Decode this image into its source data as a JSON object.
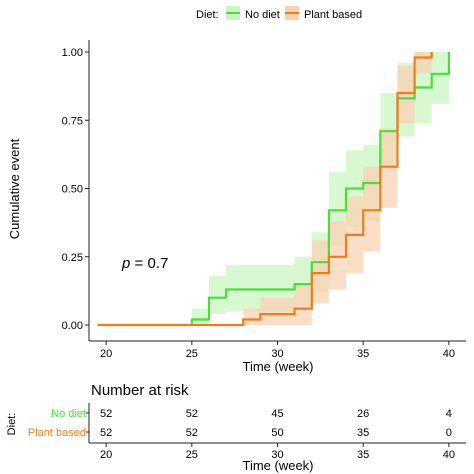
{
  "legend": {
    "title": "Diet:",
    "placement": "top",
    "items": [
      {
        "label": "No diet",
        "color": "#4ddc3c",
        "fill": "#c9f5c2"
      },
      {
        "label": "Plant based",
        "color": "#ee7d20",
        "fill": "#fbd2b1"
      }
    ]
  },
  "chart_data": {
    "type": "line",
    "subtype": "kaplan-meier-cumulative-event",
    "xlabel": "Time (week)",
    "ylabel": "Cumulative event",
    "xlim": [
      19,
      41
    ],
    "ylim": [
      0,
      1
    ],
    "x_ticks": [
      "20",
      "25",
      "30",
      "35",
      "40"
    ],
    "y_ticks": [
      "0.00",
      "0.25",
      "0.50",
      "0.75",
      "1.00"
    ],
    "annotation": {
      "italic": "p",
      "text": " = 0.7",
      "x": 21,
      "y": 0.25
    },
    "grid": false,
    "series": [
      {
        "name": "No diet",
        "color": "#4ddc3c",
        "steps": [
          [
            19.5,
            0
          ],
          [
            25,
            0
          ],
          [
            25,
            0.02
          ],
          [
            26,
            0.02
          ],
          [
            26,
            0.1
          ],
          [
            27,
            0.1
          ],
          [
            27,
            0.13
          ],
          [
            31,
            0.13
          ],
          [
            31,
            0.15
          ],
          [
            32,
            0.15
          ],
          [
            32,
            0.23
          ],
          [
            33,
            0.23
          ],
          [
            33,
            0.42
          ],
          [
            34,
            0.42
          ],
          [
            34,
            0.5
          ],
          [
            35,
            0.5
          ],
          [
            35,
            0.52
          ],
          [
            36,
            0.52
          ],
          [
            36,
            0.71
          ],
          [
            37,
            0.71
          ],
          [
            37,
            0.83
          ],
          [
            38,
            0.83
          ],
          [
            38,
            0.87
          ],
          [
            39,
            0.87
          ],
          [
            39,
            0.92
          ],
          [
            40,
            0.92
          ],
          [
            40,
            1.0
          ]
        ],
        "ci_lower": [
          0,
          0,
          0.0,
          0.0,
          0.04,
          0.04,
          0.05,
          0.05,
          0.07,
          0.07,
          0.12,
          0.12,
          0.29,
          0.29,
          0.36,
          0.36,
          0.38,
          0.38,
          0.56,
          0.56,
          0.69,
          0.69,
          0.74,
          0.74,
          0.81,
          0.81,
          0.9
        ],
        "ci_upper": [
          0,
          0,
          0.06,
          0.06,
          0.18,
          0.18,
          0.22,
          0.22,
          0.25,
          0.25,
          0.34,
          0.34,
          0.56,
          0.56,
          0.64,
          0.64,
          0.66,
          0.66,
          0.85,
          0.85,
          0.96,
          0.96,
          1.0,
          1.0,
          1.0,
          1.0,
          1.0
        ]
      },
      {
        "name": "Plant based",
        "color": "#ee7d20",
        "steps": [
          [
            19.5,
            0
          ],
          [
            28,
            0
          ],
          [
            28,
            0.02
          ],
          [
            29,
            0.02
          ],
          [
            29,
            0.04
          ],
          [
            31,
            0.04
          ],
          [
            31,
            0.06
          ],
          [
            32,
            0.06
          ],
          [
            32,
            0.19
          ],
          [
            33,
            0.19
          ],
          [
            33,
            0.25
          ],
          [
            34,
            0.25
          ],
          [
            34,
            0.33
          ],
          [
            35,
            0.33
          ],
          [
            35,
            0.42
          ],
          [
            36,
            0.42
          ],
          [
            36,
            0.58
          ],
          [
            37,
            0.58
          ],
          [
            37,
            0.85
          ],
          [
            38,
            0.85
          ],
          [
            38,
            0.98
          ],
          [
            39,
            0.98
          ],
          [
            39,
            1.0
          ]
        ],
        "ci_lower": [
          0,
          0,
          0.0,
          0.0,
          0.0,
          0.0,
          0.0,
          0.0,
          0.08,
          0.08,
          0.13,
          0.13,
          0.19,
          0.19,
          0.27,
          0.27,
          0.43,
          0.43,
          0.74,
          0.74,
          0.92,
          0.92,
          1.0
        ],
        "ci_upper": [
          0,
          0,
          0.06,
          0.06,
          0.1,
          0.1,
          0.14,
          0.14,
          0.31,
          0.31,
          0.38,
          0.38,
          0.47,
          0.47,
          0.58,
          0.58,
          0.72,
          0.72,
          0.95,
          0.95,
          1.0,
          1.0,
          1.0
        ]
      }
    ]
  },
  "risk_table": {
    "title": "Number at risk",
    "row_axis_label": "Diet:",
    "x_ticks": [
      "20",
      "25",
      "30",
      "35",
      "40"
    ],
    "xlabel": "Time (week)",
    "rows": [
      {
        "label": "No diet",
        "color": "#4ddc3c",
        "values": [
          "52",
          "52",
          "45",
          "26",
          "4"
        ]
      },
      {
        "label": "Plant based",
        "color": "#ee7d20",
        "values": [
          "52",
          "52",
          "50",
          "35",
          "0"
        ]
      }
    ]
  }
}
